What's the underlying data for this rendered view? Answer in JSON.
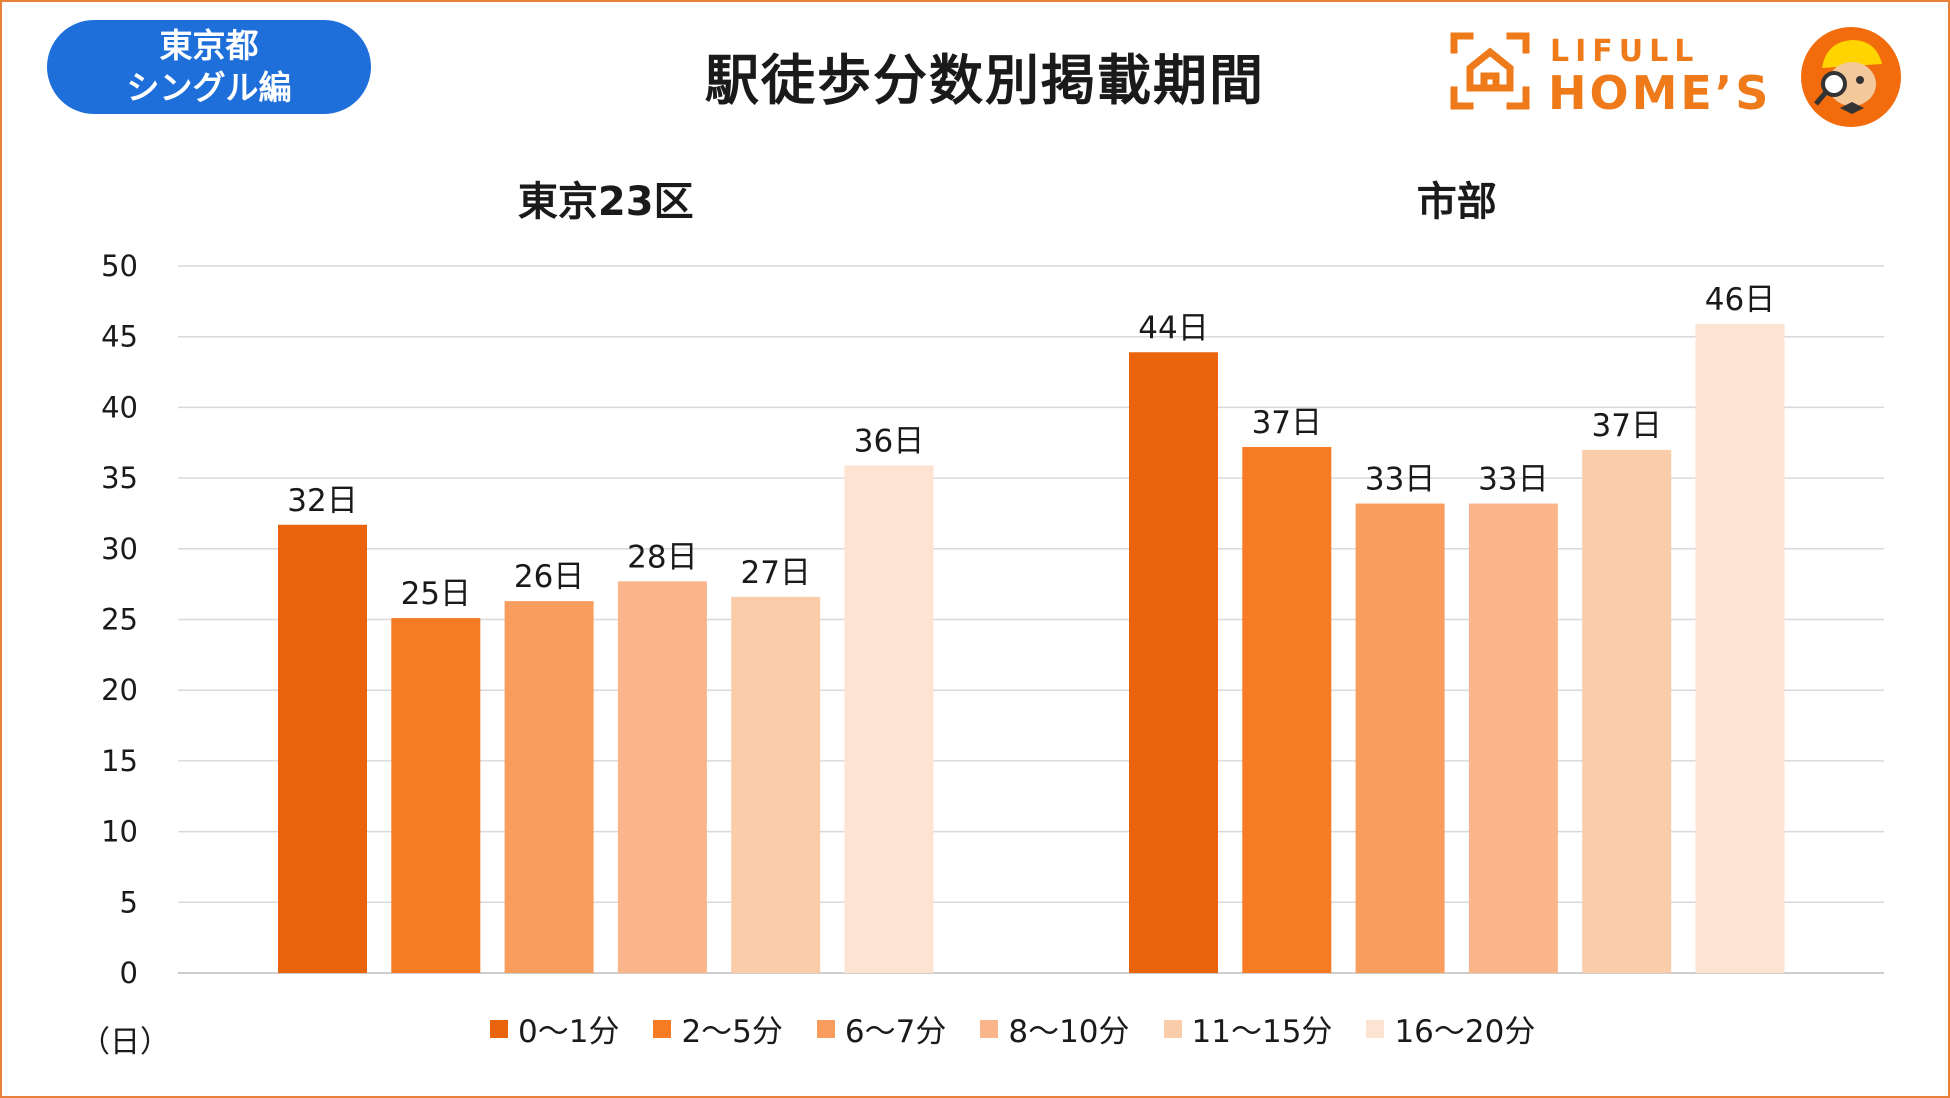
{
  "badge": {
    "line1": "東京都",
    "line2": "シングル編"
  },
  "title": "駅徒歩分数別掲載期間",
  "brand": {
    "top": "LIFULL",
    "main": "HOME’S",
    "accent": "#ef7a1a"
  },
  "unit_label": "（日）",
  "colors": [
    "#e9640d",
    "#f77b23",
    "#f99d5e",
    "#fab68a",
    "#fbcca9",
    "#fde4d2"
  ],
  "chart_data": {
    "type": "bar",
    "title": "駅徒歩分数別掲載期間",
    "groups": [
      "東京23区",
      "市部"
    ],
    "series": [
      {
        "name": "0〜1分",
        "values": [
          32,
          44
        ]
      },
      {
        "name": "2〜5分",
        "values": [
          25,
          37
        ]
      },
      {
        "name": "6〜7分",
        "values": [
          26,
          33
        ]
      },
      {
        "name": "8〜10分",
        "values": [
          28,
          33
        ]
      },
      {
        "name": "11〜15分",
        "values": [
          27,
          37
        ]
      },
      {
        "name": "16〜20分",
        "values": [
          36,
          46
        ]
      }
    ],
    "plotted_values": [
      [
        31.7,
        25.1,
        26.3,
        27.7,
        26.6,
        35.9
      ],
      [
        43.9,
        37.2,
        33.2,
        33.2,
        37.0,
        45.9
      ]
    ],
    "data_labels": [
      [
        "32日",
        "25日",
        "26日",
        "28日",
        "27日",
        "36日"
      ],
      [
        "44日",
        "37日",
        "33日",
        "33日",
        "37日",
        "46日"
      ]
    ],
    "ylabel": "（日）",
    "ylim": [
      0,
      50
    ],
    "yticks": [
      0,
      5,
      10,
      15,
      20,
      25,
      30,
      35,
      40,
      45,
      50
    ],
    "grid": true,
    "legend": "bottom"
  }
}
